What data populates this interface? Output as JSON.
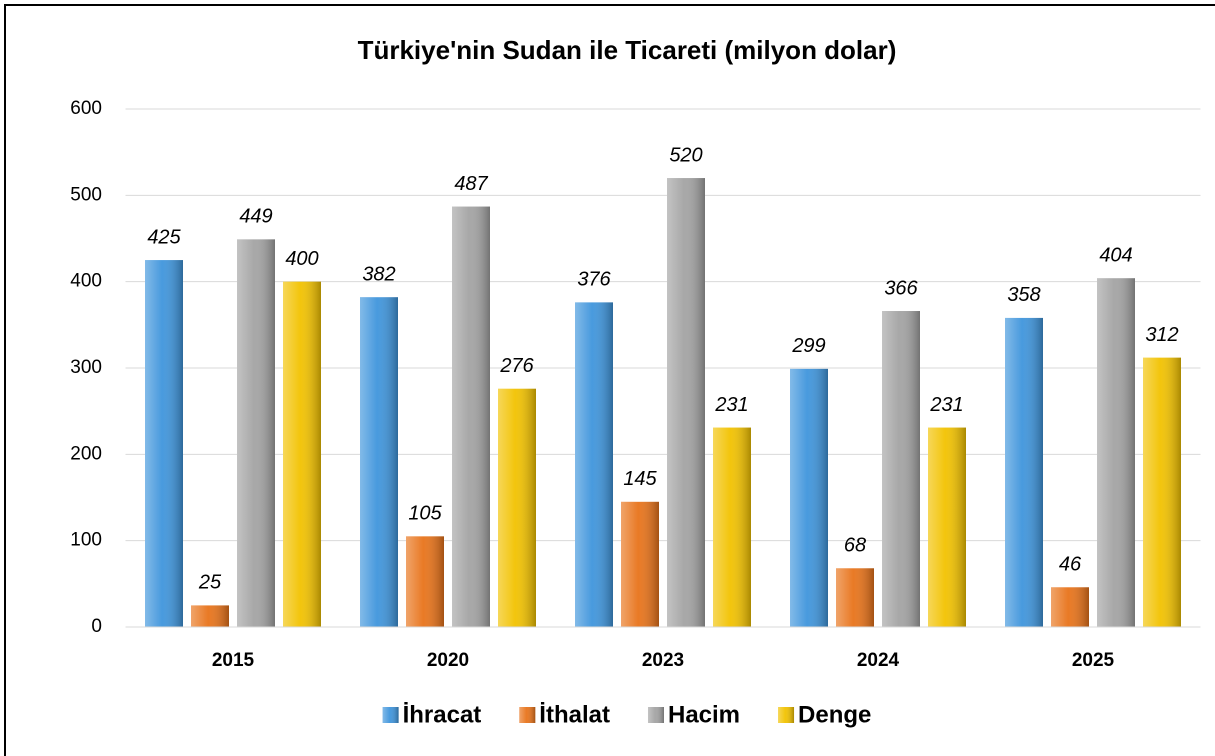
{
  "chart_data": {
    "type": "bar",
    "title": "Türkiye'nin Sudan ile Ticareti (milyon dolar)",
    "categories": [
      "2015",
      "2020",
      "2023",
      "2024",
      "2025"
    ],
    "series": [
      {
        "name": "İhracat",
        "color": "#3f95dc",
        "values": [
          425,
          382,
          376,
          299,
          358
        ]
      },
      {
        "name": "İthalat",
        "color": "#e8731a",
        "values": [
          25,
          105,
          145,
          68,
          46
        ]
      },
      {
        "name": "Hacim",
        "color": "#a3a3a3",
        "values": [
          449,
          487,
          520,
          366,
          404
        ]
      },
      {
        "name": "Denge",
        "color": "#f2c200",
        "values": [
          400,
          276,
          231,
          231,
          312
        ]
      }
    ],
    "ylim": [
      0,
      600
    ],
    "yticks": [
      0,
      100,
      200,
      300,
      400,
      500,
      600
    ],
    "grid": true,
    "legend": "bottom"
  }
}
